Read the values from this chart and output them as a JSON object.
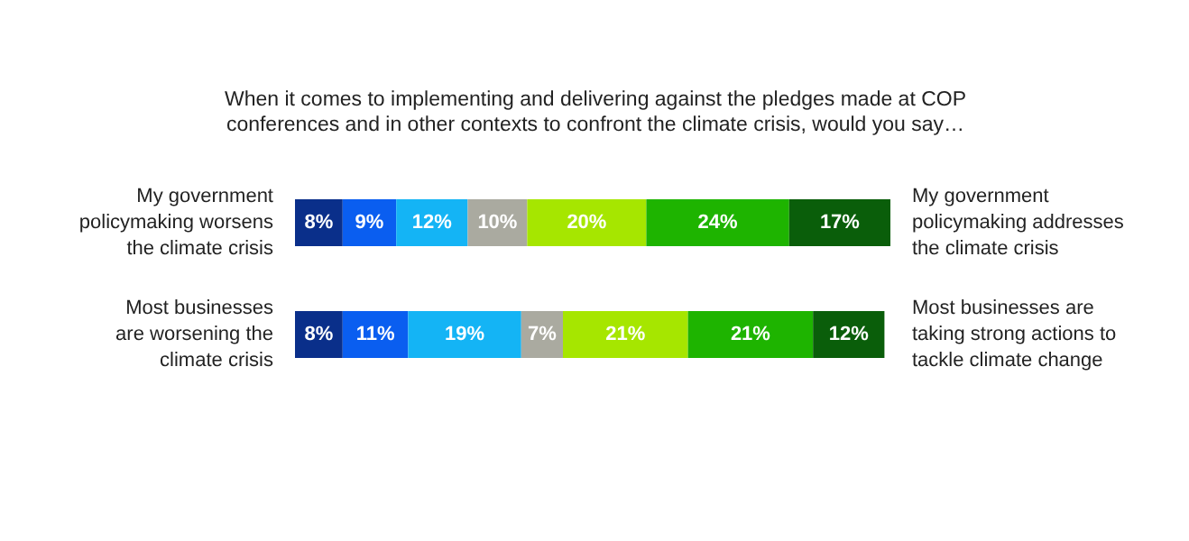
{
  "chart_data": {
    "type": "bar",
    "orientation": "horizontal",
    "stacked": true,
    "title": "When it comes to implementing and delivering against the pledges made at COP\nconferences and in other contexts to confront the climate crisis, would you say…",
    "categories": [
      "My government\npolicymaking worsens\nthe climate crisis",
      "Most businesses\nare worsening the\nclimate crisis"
    ],
    "annotations": [
      "My government\npolicymaking addresses\nthe climate crisis",
      "Most businesses are\ntaking strong actions to\ntackle climate change"
    ],
    "series": [
      {
        "color": "#0a2f8a",
        "values": [
          8,
          8
        ],
        "value_labels": [
          "8%",
          "8%"
        ]
      },
      {
        "color": "#0a5ef0",
        "values": [
          9,
          11
        ],
        "value_labels": [
          "9%",
          "11%"
        ]
      },
      {
        "color": "#14b4f5",
        "values": [
          12,
          19
        ],
        "value_labels": [
          "12%",
          "19%"
        ]
      },
      {
        "color": "#aaaaa0",
        "values": [
          10,
          7
        ],
        "value_labels": [
          "10%",
          "7%"
        ]
      },
      {
        "color": "#a6e600",
        "values": [
          20,
          21
        ],
        "value_labels": [
          "20%",
          "21%"
        ]
      },
      {
        "color": "#1eb400",
        "values": [
          24,
          21
        ],
        "value_labels": [
          "24%",
          "21%"
        ]
      },
      {
        "color": "#0a5e0a",
        "values": [
          17,
          12
        ],
        "value_labels": [
          "17%",
          "12%"
        ]
      }
    ]
  }
}
